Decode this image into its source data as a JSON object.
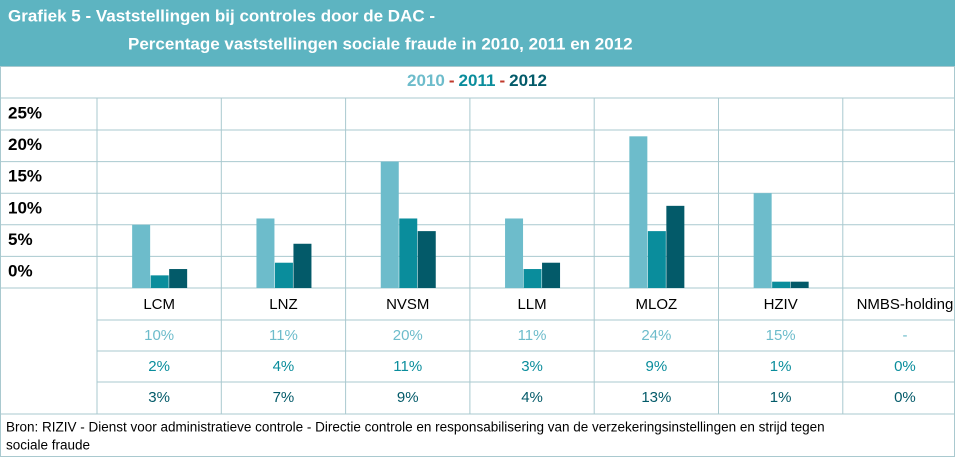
{
  "chart_data": {
    "type": "bar",
    "title": [
      "Grafiek 5 - Vaststellingen bij controles door de DAC -",
      "Percentage vaststellingen sociale fraude in 2010, 2011 en 2012"
    ],
    "categories": [
      "LCM",
      "LNZ",
      "NVSM",
      "LLM",
      "MLOZ",
      "HZIV",
      "NMBS-holding"
    ],
    "series": [
      {
        "name": "2010",
        "color": "#6dbccb",
        "values": [
          10,
          11,
          20,
          11,
          24,
          15,
          null
        ],
        "value_labels": [
          "10%",
          "11%",
          "20%",
          "11%",
          "24%",
          "15%",
          "-"
        ]
      },
      {
        "name": "2011",
        "color": "#0a8d9c",
        "values": [
          2,
          4,
          11,
          3,
          9,
          1,
          0
        ],
        "value_labels": [
          "2%",
          "4%",
          "11%",
          "3%",
          "9%",
          "1%",
          "0%"
        ]
      },
      {
        "name": "2012",
        "color": "#035a69",
        "values": [
          3,
          7,
          9,
          4,
          13,
          1,
          0
        ],
        "value_labels": [
          "3%",
          "7%",
          "9%",
          "4%",
          "13%",
          "1%",
          "0%"
        ]
      }
    ],
    "legend_separator": "-",
    "ylim": [
      0,
      25
    ],
    "yticks": [
      {
        "value": 0,
        "label": "0%"
      },
      {
        "value": 5,
        "label": "5%"
      },
      {
        "value": 10,
        "label": "10%"
      },
      {
        "value": 15,
        "label": "15%"
      },
      {
        "value": 20,
        "label": "20%"
      },
      {
        "value": 25,
        "label": "25%"
      }
    ],
    "grid": true,
    "source": [
      "Bron: RIZIV - Dienst voor administratieve controle - Directie controle en responsabilisering van de verzekeringsinstellingen en strijd tegen",
      "sociale fraude"
    ]
  }
}
